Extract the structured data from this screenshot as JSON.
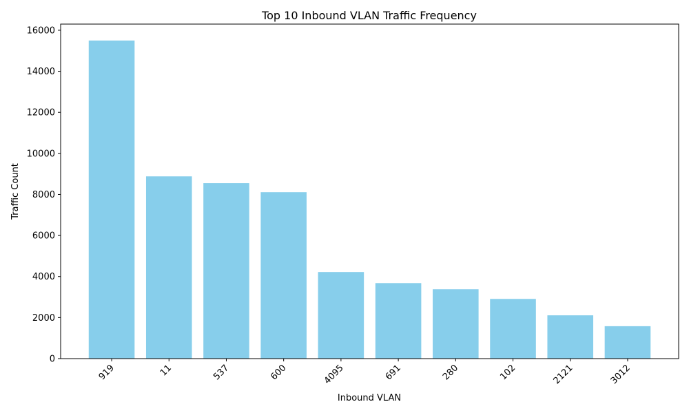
{
  "chart_data": {
    "type": "bar",
    "title": "Top 10 Inbound VLAN Traffic Frequency",
    "xlabel": "Inbound VLAN",
    "ylabel": "Traffic Count",
    "categories": [
      "919",
      "11",
      "537",
      "600",
      "4095",
      "691",
      "280",
      "102",
      "2121",
      "3012"
    ],
    "values": [
      15500,
      8880,
      8550,
      8110,
      4220,
      3680,
      3380,
      2910,
      2110,
      1580
    ],
    "ylim": [
      0,
      16300
    ],
    "yticks": [
      0,
      2000,
      4000,
      6000,
      8000,
      10000,
      12000,
      14000,
      16000
    ],
    "bar_color": "#87ceeb",
    "grid": false,
    "x_tick_rotation_deg": 45
  }
}
